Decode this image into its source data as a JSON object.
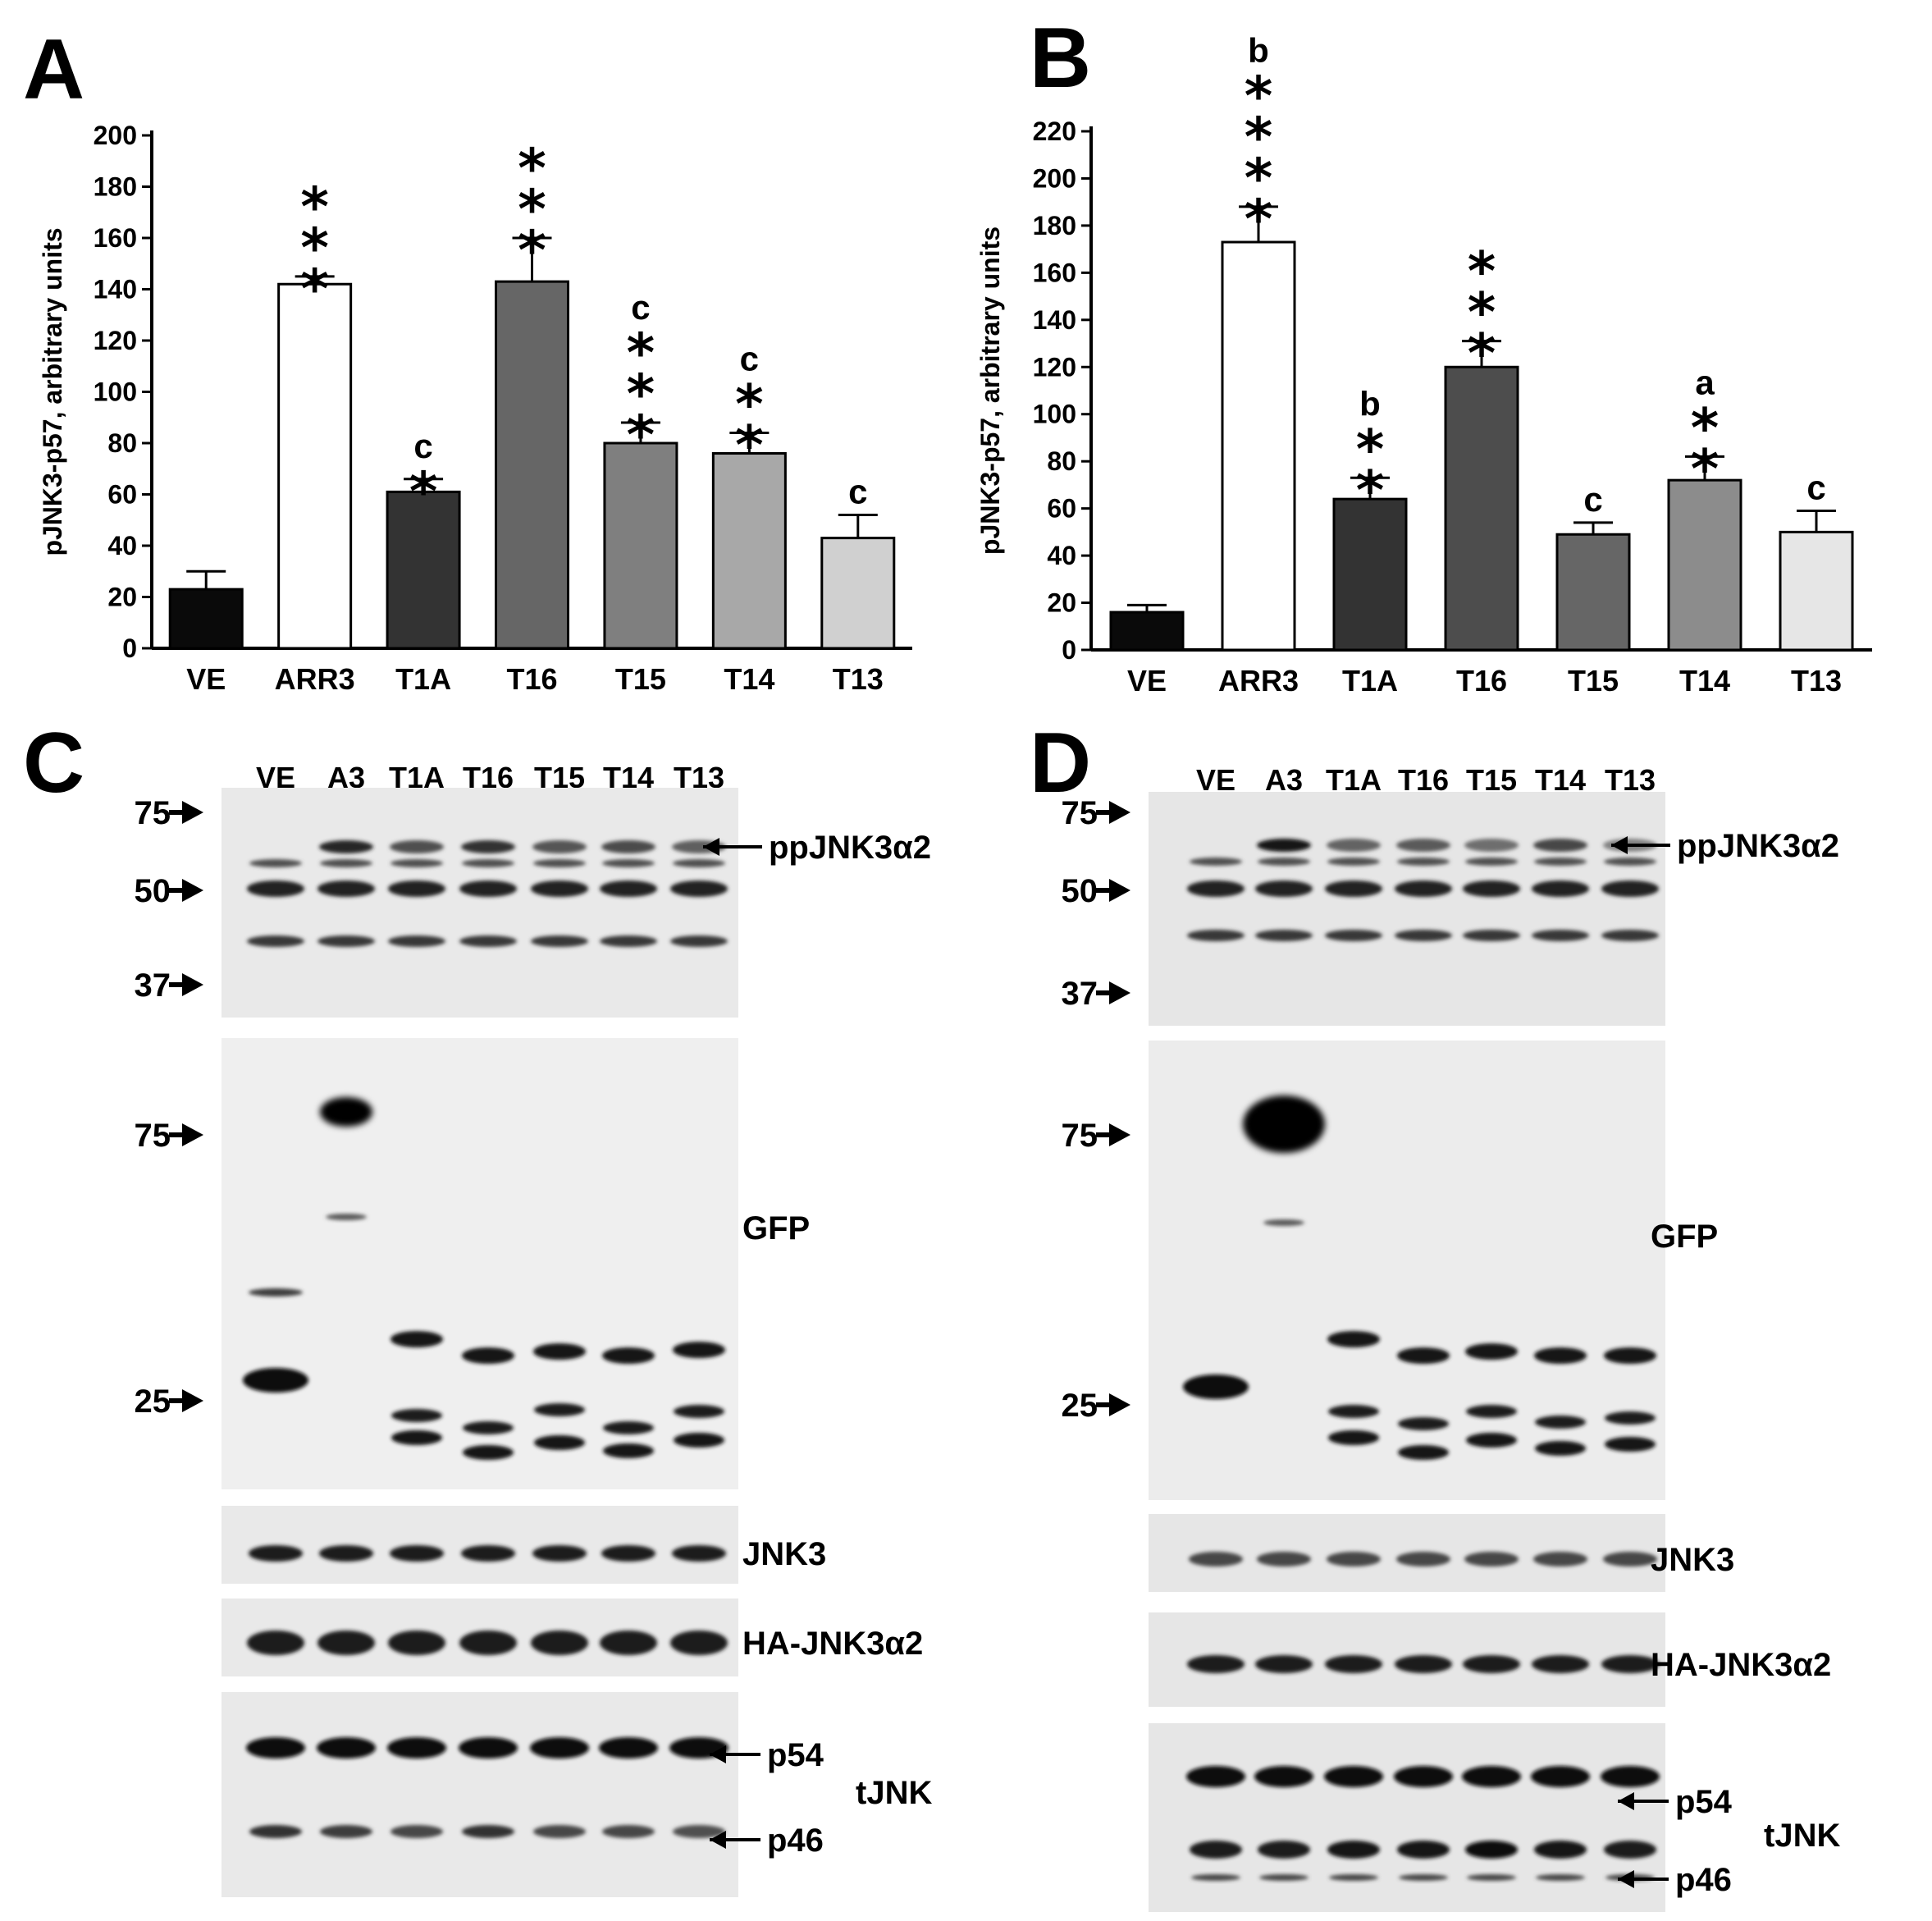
{
  "panels": [
    {
      "id": "A",
      "label": "A"
    },
    {
      "id": "B",
      "label": "B"
    },
    {
      "id": "C",
      "label": "C"
    },
    {
      "id": "D",
      "label": "D"
    }
  ],
  "chart_data": [
    {
      "panel": "A",
      "type": "bar",
      "categories": [
        "VE",
        "ARR3",
        "T1A",
        "T16",
        "T15",
        "T14",
        "T13"
      ],
      "values": [
        23,
        142,
        61,
        143,
        80,
        76,
        43
      ],
      "errors": [
        7,
        3,
        5,
        17,
        8,
        8,
        9
      ],
      "bar_colors": [
        "#0a0a0a",
        "#ffffff",
        "#333333",
        "#666666",
        "#7f7f7f",
        "#a8a8a8",
        "#d0d0d0"
      ],
      "stars": [
        "",
        "***",
        "*",
        "***",
        "***",
        "**",
        ""
      ],
      "letters": [
        "",
        "",
        "c",
        "",
        "c",
        "c",
        "c"
      ],
      "ylabel": "pJNK3-p57, arbitrary units",
      "ylim": [
        0,
        200
      ],
      "yticks": [
        0,
        20,
        40,
        60,
        80,
        100,
        120,
        140,
        160,
        180,
        200
      ]
    },
    {
      "panel": "B",
      "type": "bar",
      "categories": [
        "VE",
        "ARR3",
        "T1A",
        "T16",
        "T15",
        "T14",
        "T13"
      ],
      "values": [
        16,
        173,
        64,
        120,
        49,
        72,
        50
      ],
      "errors": [
        3,
        15,
        9,
        11,
        5,
        10,
        9
      ],
      "bar_colors": [
        "#0a0a0a",
        "#ffffff",
        "#333333",
        "#4d4d4d",
        "#666666",
        "#8c8c8c",
        "#e6e6e6"
      ],
      "stars": [
        "",
        "****",
        "**",
        "***",
        "",
        "**",
        ""
      ],
      "letters": [
        "",
        "b",
        "b",
        "",
        "c",
        "a",
        "c"
      ],
      "ylabel": "pJNK3-p57, arbitrary units",
      "ylim": [
        0,
        220
      ],
      "yticks": [
        0,
        20,
        40,
        60,
        80,
        100,
        120,
        140,
        160,
        180,
        200,
        220
      ]
    }
  ],
  "blots": {
    "C": {
      "lanes": [
        "VE",
        "A3",
        "T1A",
        "T16",
        "T15",
        "T14",
        "T13"
      ],
      "mw_top": [
        "75",
        "50",
        "37"
      ],
      "mw_gfp": [
        "75",
        "25"
      ],
      "labels": {
        "ppjnk": "ppJNK3α2",
        "gfp": "GFP",
        "jnk3": "JNK3",
        "ha": "HA-JNK3α2",
        "p54": "p54",
        "p46": "p46",
        "tjnk": "tJNK"
      }
    },
    "D": {
      "lanes": [
        "VE",
        "A3",
        "T1A",
        "T16",
        "T15",
        "T14",
        "T13"
      ],
      "mw_top": [
        "75",
        "50",
        "37"
      ],
      "mw_gfp": [
        "75",
        "25"
      ],
      "labels": {
        "ppjnk": "ppJNK3α2",
        "gfp": "GFP",
        "jnk3": "JNK3",
        "ha": "HA-JNK3α2",
        "p54": "p54",
        "p46": "p46",
        "tjnk": "tJNK"
      }
    }
  }
}
